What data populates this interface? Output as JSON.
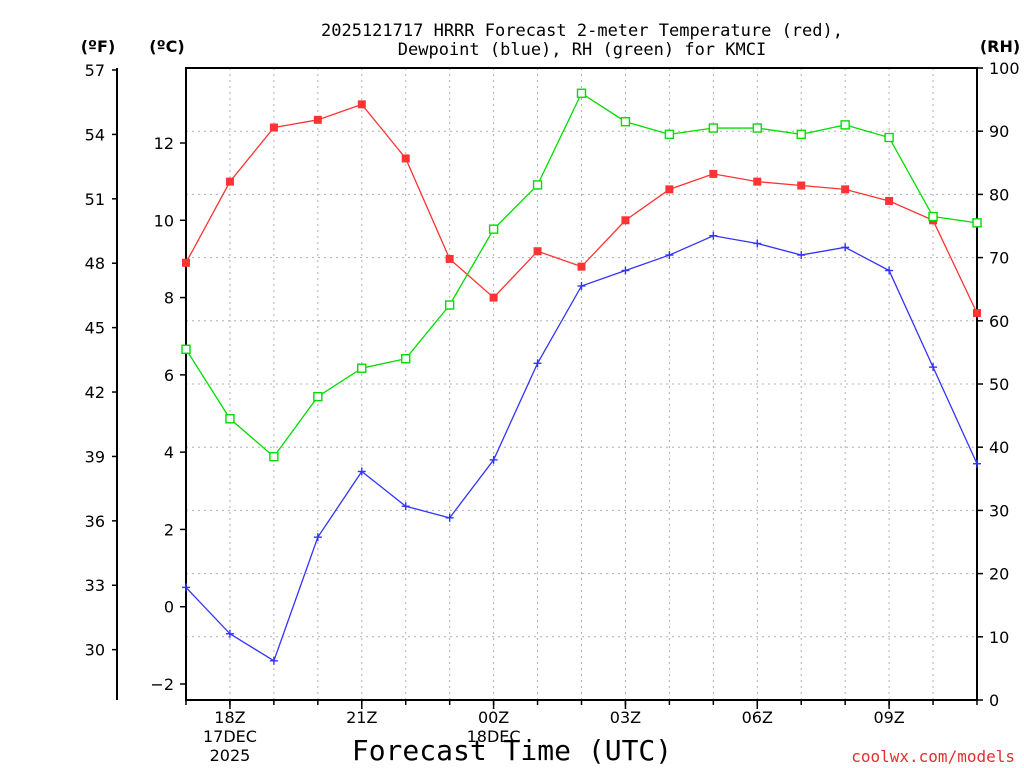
{
  "chart_data": {
    "type": "line",
    "title_lines": [
      "2025121717 HRRR Forecast 2-meter Temperature (red),",
      "Dewpoint (blue), RH (green) for KMCI"
    ],
    "xlabel": "Forecast Time (UTC)",
    "watermark": "coolwx.com/models",
    "unit_label_f": "(ºF)",
    "unit_label_c": "(ºC)",
    "unit_label_rh": "(RH)",
    "x_hours": [
      17,
      18,
      19,
      20,
      21,
      22,
      23,
      24,
      25,
      26,
      27,
      28,
      29,
      30,
      31,
      32,
      33,
      34,
      35
    ],
    "x_tick_hours": [
      18,
      21,
      24,
      27,
      30,
      33
    ],
    "x_tick_labels": [
      "18Z",
      "21Z",
      "00Z",
      "03Z",
      "06Z",
      "09Z"
    ],
    "x_date_labels": [
      {
        "hour": 18,
        "lines": [
          "17DEC",
          "2025"
        ]
      },
      {
        "hour": 24,
        "lines": [
          "18DEC"
        ]
      }
    ],
    "xlim": [
      17,
      35
    ],
    "celsius_ticks": [
      -2,
      0,
      2,
      4,
      6,
      8,
      10,
      12
    ],
    "fahrenheit_ticks": [
      30,
      33,
      36,
      39,
      42,
      45,
      48,
      51,
      54,
      57
    ],
    "rh_ticks": [
      0,
      10,
      20,
      30,
      40,
      50,
      60,
      70,
      80,
      90,
      100
    ],
    "ylim_celsius": [
      -2.4,
      14
    ],
    "ylim_rh": [
      0,
      100
    ],
    "grid": true,
    "series": [
      {
        "name": "Temperature",
        "color": "#ff3333",
        "marker": "filled-square",
        "axis": "celsius",
        "values": [
          8.9,
          11.0,
          12.4,
          12.6,
          13.0,
          11.6,
          9.0,
          8.0,
          9.2,
          8.8,
          10.0,
          10.8,
          11.2,
          11.0,
          10.9,
          10.8,
          10.5,
          10.0,
          7.6
        ]
      },
      {
        "name": "Dewpoint",
        "color": "#3333ff",
        "marker": "plus",
        "axis": "celsius",
        "values": [
          0.5,
          -0.7,
          -1.4,
          1.8,
          3.5,
          2.6,
          2.3,
          3.8,
          6.3,
          8.3,
          8.7,
          9.1,
          9.6,
          9.4,
          9.1,
          9.3,
          8.7,
          6.2,
          3.7
        ]
      },
      {
        "name": "RH",
        "color": "#00dd00",
        "marker": "open-square",
        "axis": "rh",
        "values": [
          55.5,
          44.5,
          38.5,
          48,
          52.5,
          54,
          62.5,
          74.5,
          81.5,
          96,
          91.5,
          89.5,
          90.5,
          90.5,
          89.5,
          91,
          89,
          76.5,
          75.5
        ]
      }
    ]
  }
}
